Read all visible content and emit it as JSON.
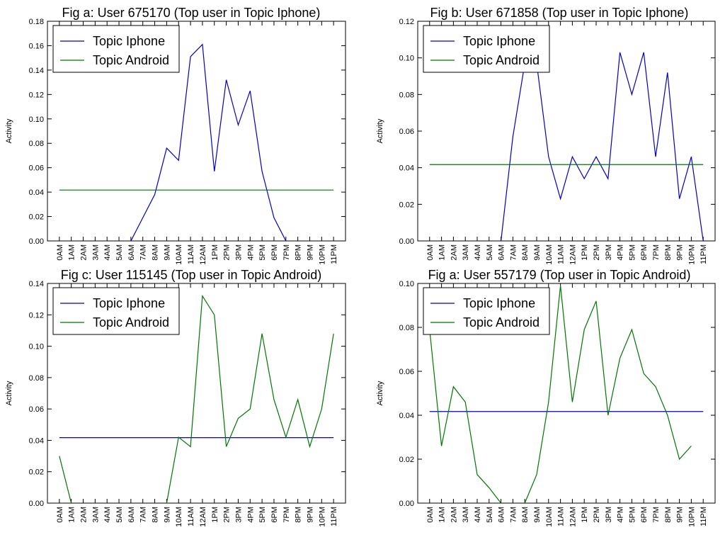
{
  "chart_data": [
    {
      "type": "line",
      "title": "Fig a: User 675170 (Top user in Topic Iphone)",
      "ylabel": "Activity",
      "xlabel": "",
      "ylim": [
        0,
        0.18
      ],
      "yticks": [
        0.0,
        0.02,
        0.04,
        0.06,
        0.08,
        0.1,
        0.12,
        0.14,
        0.16,
        0.18
      ],
      "ytick_labels": [
        "0.00",
        "0.02",
        "0.04",
        "0.06",
        "0.08",
        "0.10",
        "0.12",
        "0.14",
        "0.16",
        "0.18"
      ],
      "categories": [
        "0AM",
        "1AM",
        "2AM",
        "3AM",
        "4AM",
        "5AM",
        "6AM",
        "7AM",
        "8AM",
        "9AM",
        "10AM",
        "11AM",
        "12AM",
        "1PM",
        "2PM",
        "3PM",
        "4PM",
        "5PM",
        "6PM",
        "7PM",
        "8PM",
        "9PM",
        "10PM",
        "11PM"
      ],
      "grid": false,
      "legend_position": "top-left",
      "series": [
        {
          "name": "Topic Iphone",
          "color": "#0000cc",
          "values": [
            null,
            null,
            null,
            null,
            null,
            null,
            0,
            0.019,
            0.038,
            0.076,
            0.066,
            0.151,
            0.161,
            0.057,
            0.132,
            0.095,
            0.123,
            0.057,
            0.019,
            0,
            null,
            null,
            null,
            null
          ]
        },
        {
          "name": "Topic Android",
          "color": "#007700",
          "values": [
            0.0417,
            0.0417,
            0.0417,
            0.0417,
            0.0417,
            0.0417,
            0.0417,
            0.0417,
            0.0417,
            0.0417,
            0.0417,
            0.0417,
            0.0417,
            0.0417,
            0.0417,
            0.0417,
            0.0417,
            0.0417,
            0.0417,
            0.0417,
            0.0417,
            0.0417,
            0.0417,
            0.0417
          ]
        }
      ]
    },
    {
      "type": "line",
      "title": "Fig b: User 671858 (Top user in Topic Iphone)",
      "ylabel": "Activity",
      "xlabel": "",
      "ylim": [
        0,
        0.12
      ],
      "yticks": [
        0.0,
        0.02,
        0.04,
        0.06,
        0.08,
        0.1,
        0.12
      ],
      "ytick_labels": [
        "0.00",
        "0.02",
        "0.04",
        "0.06",
        "0.08",
        "0.10",
        "0.12"
      ],
      "categories": [
        "0AM",
        "1AM",
        "2AM",
        "3AM",
        "4AM",
        "5AM",
        "6AM",
        "7AM",
        "8AM",
        "9AM",
        "10AM",
        "11AM",
        "12AM",
        "1PM",
        "2PM",
        "3PM",
        "4PM",
        "5PM",
        "6PM",
        "7PM",
        "8PM",
        "9PM",
        "10PM",
        "11PM"
      ],
      "grid": false,
      "legend_position": "top-left",
      "series": [
        {
          "name": "Topic Iphone",
          "color": "#0000cc",
          "values": [
            null,
            null,
            null,
            null,
            null,
            null,
            0,
            0.057,
            0.097,
            0.097,
            0.046,
            0.023,
            0.046,
            0.034,
            0.046,
            0.034,
            0.103,
            0.08,
            0.103,
            0.046,
            0.092,
            0.023,
            0.046,
            0
          ]
        },
        {
          "name": "Topic Android",
          "color": "#007700",
          "values": [
            0.0417,
            0.0417,
            0.0417,
            0.0417,
            0.0417,
            0.0417,
            0.0417,
            0.0417,
            0.0417,
            0.0417,
            0.0417,
            0.0417,
            0.0417,
            0.0417,
            0.0417,
            0.0417,
            0.0417,
            0.0417,
            0.0417,
            0.0417,
            0.0417,
            0.0417,
            0.0417,
            0.0417
          ]
        }
      ]
    },
    {
      "type": "line",
      "title": "Fig c: User 115145 (Top user in Topic Android)",
      "ylabel": "Activity",
      "xlabel": "",
      "ylim": [
        0,
        0.14
      ],
      "yticks": [
        0.0,
        0.02,
        0.04,
        0.06,
        0.08,
        0.1,
        0.12,
        0.14
      ],
      "ytick_labels": [
        "0.00",
        "0.02",
        "0.04",
        "0.06",
        "0.08",
        "0.10",
        "0.12",
        "0.14"
      ],
      "categories": [
        "0AM",
        "1AM",
        "2AM",
        "3AM",
        "4AM",
        "5AM",
        "6AM",
        "7AM",
        "8AM",
        "9AM",
        "10AM",
        "11AM",
        "12AM",
        "1PM",
        "2PM",
        "3PM",
        "4PM",
        "5PM",
        "6PM",
        "7PM",
        "8PM",
        "9PM",
        "10PM",
        "11PM"
      ],
      "grid": false,
      "legend_position": "top-left",
      "series": [
        {
          "name": "Topic Iphone",
          "color": "#0000cc",
          "values": [
            0.0417,
            0.0417,
            0.0417,
            0.0417,
            0.0417,
            0.0417,
            0.0417,
            0.0417,
            0.0417,
            0.0417,
            0.0417,
            0.0417,
            0.0417,
            0.0417,
            0.0417,
            0.0417,
            0.0417,
            0.0417,
            0.0417,
            0.0417,
            0.0417,
            0.0417,
            0.0417,
            0.0417
          ]
        },
        {
          "name": "Topic Android",
          "color": "#007700",
          "values": [
            0.03,
            0,
            null,
            null,
            null,
            null,
            null,
            null,
            null,
            0,
            0.042,
            0.036,
            0.132,
            0.12,
            0.036,
            0.054,
            0.06,
            0.108,
            0.066,
            0.042,
            0.066,
            0.036,
            0.06,
            0.108
          ]
        }
      ]
    },
    {
      "type": "line",
      "title": "Fig a: User 557179 (Top user in Topic Android)",
      "ylabel": "Activity",
      "xlabel": "",
      "ylim": [
        0,
        0.1
      ],
      "yticks": [
        0.0,
        0.02,
        0.04,
        0.06,
        0.08,
        0.1
      ],
      "ytick_labels": [
        "0.00",
        "0.02",
        "0.04",
        "0.06",
        "0.08",
        "0.10"
      ],
      "categories": [
        "0AM",
        "1AM",
        "2AM",
        "3AM",
        "4AM",
        "5AM",
        "6AM",
        "7AM",
        "8AM",
        "9AM",
        "10AM",
        "11AM",
        "12AM",
        "1PM",
        "2PM",
        "3PM",
        "4PM",
        "5PM",
        "6PM",
        "7PM",
        "8PM",
        "9PM",
        "10PM",
        "11PM"
      ],
      "grid": false,
      "legend_position": "top-left",
      "series": [
        {
          "name": "Topic Iphone",
          "color": "#0000cc",
          "values": [
            0.0417,
            0.0417,
            0.0417,
            0.0417,
            0.0417,
            0.0417,
            0.0417,
            0.0417,
            0.0417,
            0.0417,
            0.0417,
            0.0417,
            0.0417,
            0.0417,
            0.0417,
            0.0417,
            0.0417,
            0.0417,
            0.0417,
            0.0417,
            0.0417,
            0.0417,
            0.0417,
            0.0417
          ]
        },
        {
          "name": "Topic Android",
          "color": "#007700",
          "values": [
            0.079,
            0.026,
            0.053,
            0.046,
            0.013,
            0.007,
            0,
            null,
            0,
            0.013,
            0.046,
            0.099,
            0.046,
            0.079,
            0.092,
            0.04,
            0.066,
            0.079,
            0.059,
            0.053,
            0.04,
            0.02,
            0.026,
            null
          ]
        }
      ]
    }
  ]
}
